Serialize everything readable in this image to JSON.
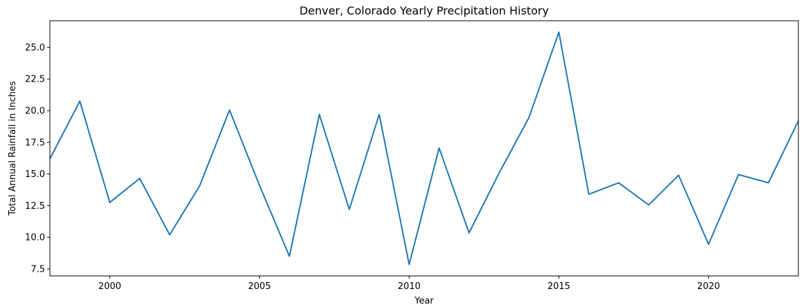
{
  "chart_data": {
    "type": "line",
    "title": "Denver, Colorado Yearly Precipitation History",
    "xlabel": "Year",
    "ylabel": "Total Annual Rainfall in Inches",
    "xlim": [
      1998,
      2023
    ],
    "ylim": [
      6.95,
      27.1
    ],
    "grid": false,
    "line_color": "#1f77b4",
    "x_ticks": [
      2000,
      2005,
      2010,
      2015,
      2020
    ],
    "y_ticks": [
      7.5,
      10.0,
      12.5,
      15.0,
      17.5,
      20.0,
      22.5,
      25.0
    ],
    "x_tick_labels": [
      "2000",
      "2005",
      "2010",
      "2015",
      "2020"
    ],
    "y_tick_labels": [
      "7.5",
      "10.0",
      "12.5",
      "15.0",
      "17.5",
      "20.0",
      "22.5",
      "25.0"
    ],
    "series": [
      {
        "x": [
          1998,
          1999,
          2000,
          2001,
          2002,
          2003,
          2004,
          2005,
          2006,
          2007,
          2008,
          2009,
          2010,
          2011,
          2012,
          2013,
          2014,
          2015,
          2016,
          2017,
          2018,
          2019,
          2020,
          2021,
          2022,
          2023
        ],
        "values": [
          16.2,
          20.75,
          12.75,
          14.65,
          10.2,
          14.05,
          20.05,
          14.1,
          8.5,
          19.7,
          12.2,
          19.7,
          7.85,
          17.05,
          10.35,
          15.05,
          19.45,
          26.2,
          13.4,
          14.3,
          12.55,
          14.9,
          9.45,
          14.95,
          14.3,
          19.2
        ]
      }
    ]
  }
}
